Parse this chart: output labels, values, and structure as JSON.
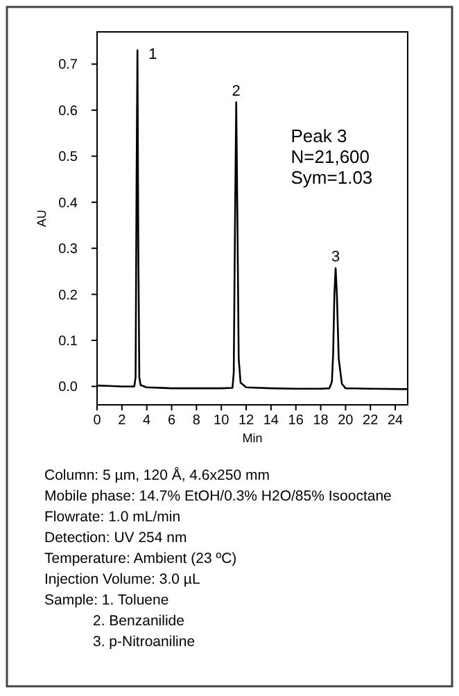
{
  "chart_data": {
    "type": "line",
    "xlabel": "Min",
    "ylabel": "AU",
    "x": [
      0,
      1,
      2,
      3.0,
      3.1,
      3.18,
      3.25,
      3.32,
      3.4,
      3.5,
      4,
      5,
      6,
      8,
      10,
      10.9,
      11.0,
      11.1,
      11.2,
      11.3,
      11.4,
      11.55,
      12,
      14,
      16,
      18,
      18.7,
      18.9,
      19.0,
      19.1,
      19.2,
      19.3,
      19.45,
      19.7,
      20,
      22,
      25
    ],
    "series": [
      {
        "color": "#000000",
        "values": [
          0.002,
          0.001,
          0.0,
          0.0,
          0.02,
          0.45,
          0.73,
          0.3,
          0.02,
          0.003,
          -0.002,
          -0.003,
          -0.004,
          -0.004,
          -0.004,
          -0.003,
          0.03,
          0.35,
          0.617,
          0.35,
          0.06,
          0.008,
          -0.002,
          -0.004,
          -0.005,
          -0.005,
          -0.004,
          0.01,
          0.07,
          0.2,
          0.257,
          0.2,
          0.06,
          0.006,
          -0.004,
          -0.005,
          -0.006
        ]
      }
    ],
    "xlim": [
      0,
      25
    ],
    "xticks": [
      0,
      2,
      4,
      6,
      8,
      10,
      12,
      14,
      16,
      18,
      20,
      22,
      24
    ],
    "ylim": [
      -0.04,
      0.77
    ],
    "yticks": [
      {
        "value": 0,
        "label": "0.0"
      },
      {
        "value": 0.1,
        "label": "0.1"
      },
      {
        "value": 0.2,
        "label": "0.2"
      },
      {
        "value": 0.3,
        "label": "0.3"
      },
      {
        "value": 0.4,
        "label": "0.4"
      },
      {
        "value": 0.5,
        "label": "0.5"
      },
      {
        "value": 0.6,
        "label": "0.6"
      },
      {
        "value": 0.7,
        "label": "0.7"
      }
    ],
    "grid": false,
    "annotations": [
      {
        "text": "1",
        "x": 3.25,
        "y": 0.73
      },
      {
        "text": "2",
        "x": 11.2,
        "y": 0.617
      },
      {
        "text": "3",
        "x": 19.2,
        "y": 0.257
      },
      "Peak 3\nN=21,600\nSym=1.03",
      "Column: 5 µm, 120 Å, 4.6x250 mm",
      "Mobile phase: 14.7% EtOH/0.3% H2O/85% Isooctane",
      "Flowrate: 1.0 mL/min",
      "Detection: UV 254 nm",
      "Temperature: Ambient (23 ºC)",
      "Injection Volume: 3.0 µL",
      "Sample: 1. Toluene",
      "            2. Benzanilide",
      "            3. p-Nitroaniline"
    ]
  }
}
